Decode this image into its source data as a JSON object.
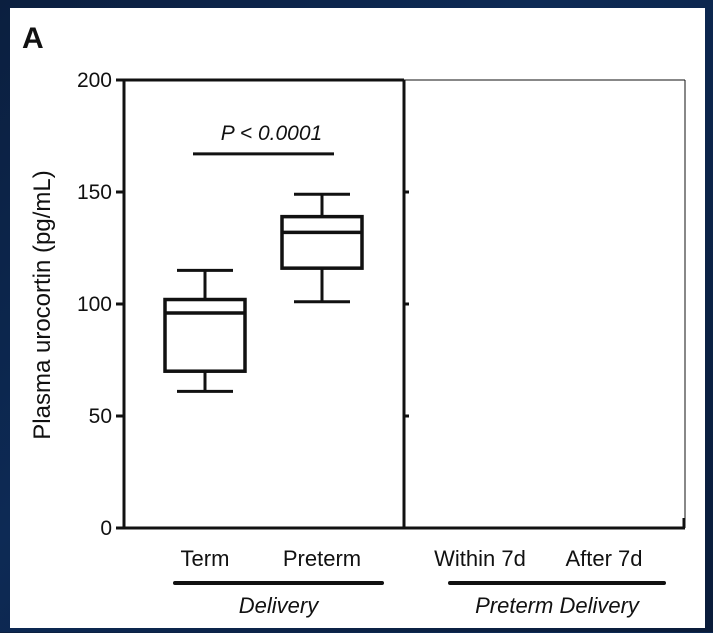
{
  "chart_data": {
    "type": "box",
    "panel_label": "A",
    "ylabel": "Plasma urocortin (pg/mL)",
    "ylim": [
      0,
      200
    ],
    "yticks": [
      0,
      50,
      100,
      150,
      200
    ],
    "categories": [
      "Term",
      "Preterm",
      "Within 7d",
      "After 7d"
    ],
    "boxes": [
      {
        "category": "Term",
        "min": 61,
        "q1": 70,
        "median": 96,
        "q3": 102,
        "max": 115
      },
      {
        "category": "Preterm",
        "min": 101,
        "q1": 116,
        "median": 132,
        "q3": 139,
        "max": 149
      }
    ],
    "annotation": {
      "text": "P < 0.0001",
      "between": [
        "Term",
        "Preterm"
      ],
      "y": 167
    },
    "groups": [
      {
        "label": "Delivery",
        "categories": [
          "Term",
          "Preterm"
        ]
      },
      {
        "label": "Preterm Delivery",
        "categories": [
          "Within 7d",
          "After 7d"
        ]
      }
    ],
    "colors": {
      "line": "#111111",
      "background": "#ffffff",
      "frame": "#0b1f3f"
    }
  }
}
